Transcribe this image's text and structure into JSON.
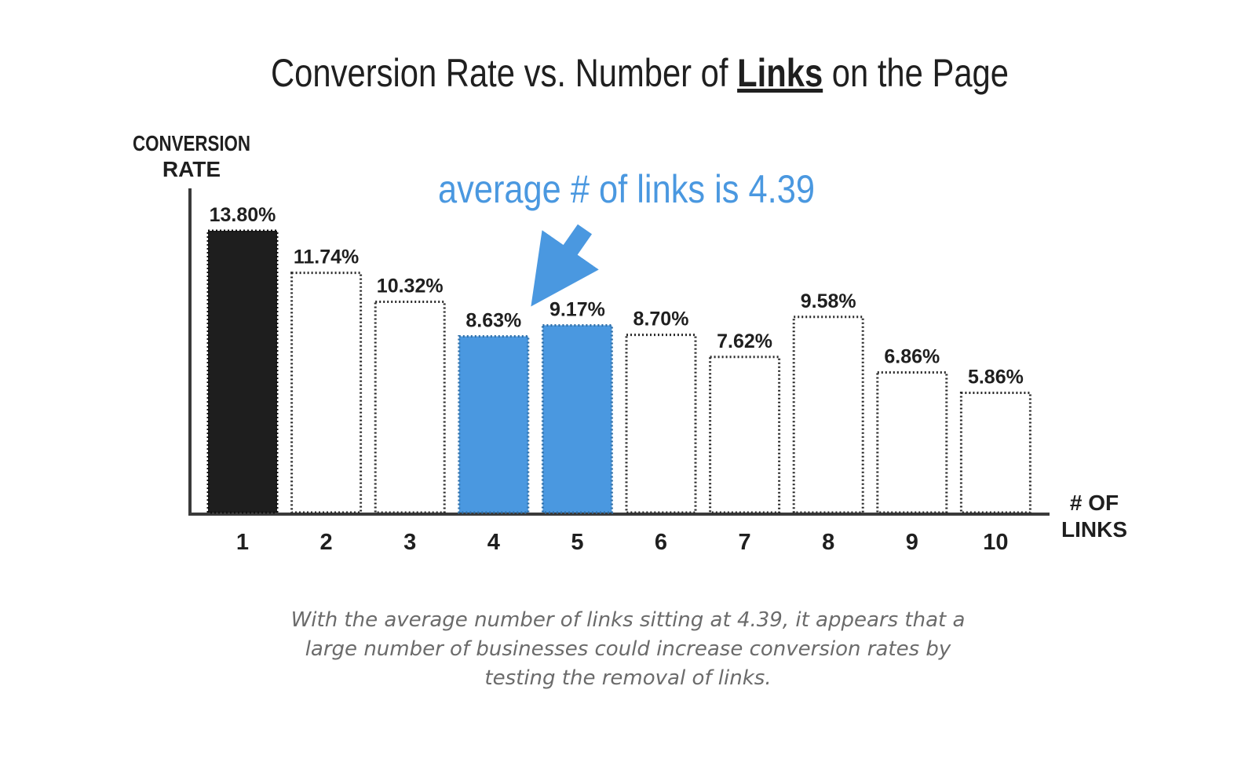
{
  "chart_data": {
    "type": "bar",
    "title": {
      "before": "Conversion Rate vs. Number of ",
      "emphasis": "Links",
      "after": " on the Page"
    },
    "ylabel": [
      "CONVERSION",
      "RATE"
    ],
    "xlabel": [
      "# OF",
      "LINKS"
    ],
    "categories": [
      "1",
      "2",
      "3",
      "4",
      "5",
      "6",
      "7",
      "8",
      "9",
      "10"
    ],
    "values": [
      13.8,
      11.74,
      10.32,
      8.63,
      9.17,
      8.7,
      7.62,
      9.58,
      6.86,
      5.86
    ],
    "value_labels": [
      "13.80%",
      "11.74%",
      "10.32%",
      "8.63%",
      "9.17%",
      "8.70%",
      "7.62%",
      "9.58%",
      "6.86%",
      "5.86%"
    ],
    "bar_styles": [
      "filled-dark",
      "outline",
      "outline",
      "filled-blue",
      "filled-blue",
      "outline",
      "outline",
      "outline",
      "outline",
      "outline"
    ],
    "ylim": [
      0,
      13.8
    ],
    "grid": false,
    "legend": "none",
    "annotation": {
      "text": "average # of links is 4.39",
      "points_to_category": "5"
    },
    "colors": {
      "dark": "#1e1e1e",
      "blue": "#4a98e0",
      "outline": "#2a2a2a",
      "axis": "#3a3a3a",
      "annotation": "#4a98e0",
      "text": "#1f1f1f"
    }
  },
  "caption": {
    "line1": "With the average number of links sitting at 4.39, it appears that a",
    "line2": "large number of businesses could increase conversion rates by",
    "line3": "testing the removal of links."
  }
}
